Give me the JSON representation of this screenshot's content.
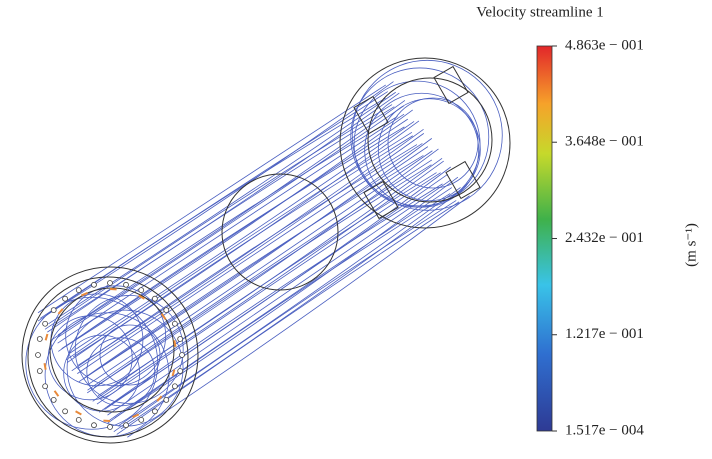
{
  "colorbar": {
    "title": "Velocity streamline 1",
    "unit": "(m s⁻¹)",
    "lim": [
      0.0001517,
      0.4863
    ],
    "ticks": [
      {
        "value": 0.4863,
        "label": "4.863e − 001"
      },
      {
        "value": 0.3648,
        "label": "3.648e − 001"
      },
      {
        "value": 0.2432,
        "label": "2.432e − 001"
      },
      {
        "value": 0.1217,
        "label": "1.217e − 001"
      },
      {
        "value": 0.0001517,
        "label": "1.517e − 004"
      }
    ]
  }
}
